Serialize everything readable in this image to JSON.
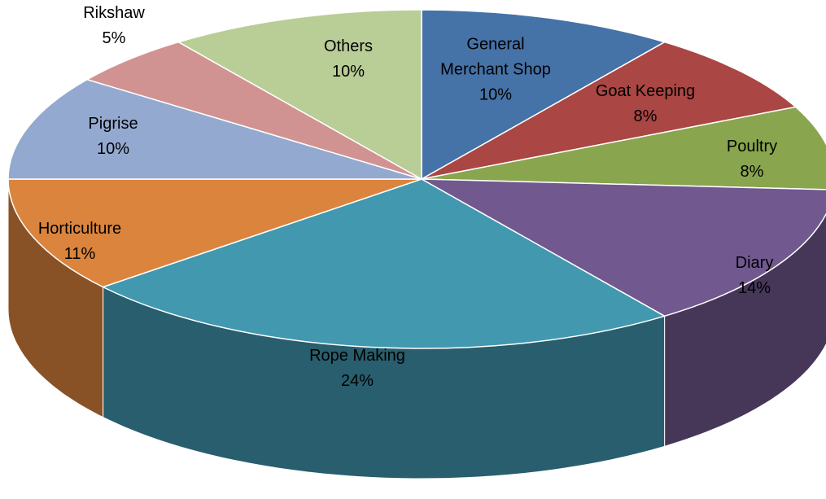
{
  "chart_data": {
    "type": "pie",
    "title": "",
    "three_d": true,
    "legend": "none",
    "slices": [
      {
        "name": "General\nMerchant Shop",
        "value": 10,
        "label": "10%",
        "color": "#4572A7"
      },
      {
        "name": "Goat Keeping",
        "value": 8,
        "label": "8%",
        "color": "#AA4643"
      },
      {
        "name": "Poultry",
        "value": 8,
        "label": "8%",
        "color": "#89A54E"
      },
      {
        "name": "Diary",
        "value": 14,
        "label": "14%",
        "color": "#71588F"
      },
      {
        "name": "Rope Making",
        "value": 24,
        "label": "24%",
        "color": "#4198AF"
      },
      {
        "name": "Horticulture",
        "value": 11,
        "label": "11%",
        "color": "#DB843D"
      },
      {
        "name": "Pigrise",
        "value": 10,
        "label": "10%",
        "color": "#93A9CF"
      },
      {
        "name": "Rikshaw",
        "value": 5,
        "label": "5%",
        "color": "#D19392"
      },
      {
        "name": "Others",
        "value": 10,
        "label": "10%",
        "color": "#B9CD96"
      }
    ]
  }
}
